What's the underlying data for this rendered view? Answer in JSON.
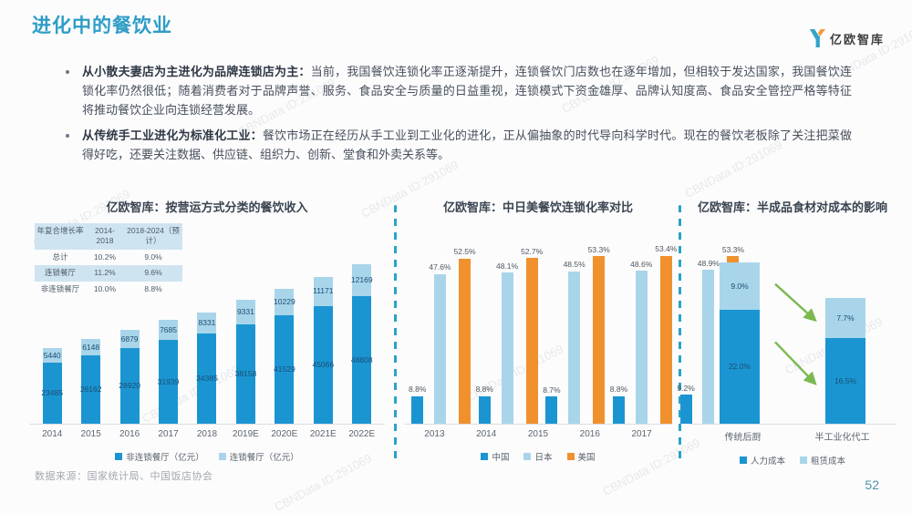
{
  "page": {
    "title": "进化中的餐饮业",
    "page_number": "52",
    "source": "数据来源：国家统计局、中国饭店协会",
    "watermark": "CBNData ID:291069",
    "accent_color": "#2e9dc6"
  },
  "logo": {
    "text": "亿欧智库"
  },
  "bullets": [
    {
      "lead": "从小散夫妻店为主进化为品牌连锁店为主：",
      "body": "当前，我国餐饮连锁化率正逐渐提升，连锁餐饮门店数也在逐年增加，但相较于发达国家，我国餐饮连锁化率仍然很低；随着消费者对于品牌声誉、服务、食品安全与质量的日益重视，连锁模式下资金雄厚、品牌认知度高、食品安全管控严格等特征将推动餐饮企业向连锁经营发展。"
    },
    {
      "lead": "从传统手工业进化为标准化工业：",
      "body": "餐饮市场正在经历从手工业到工业化的进化，正从偏抽象的时代导向科学时代。现在的餐饮老板除了关注把菜做得好吃，还要关注数据、供应链、组织力、创新、堂食和外卖关系等。"
    }
  ],
  "chart_data": [
    {
      "type": "bar",
      "stacked": true,
      "title": "亿欧智库：按营运方式分类的餐饮收入",
      "categories": [
        "2014",
        "2015",
        "2016",
        "2017",
        "2018",
        "2019E",
        "2020E",
        "2021E",
        "2022E"
      ],
      "series": [
        {
          "name": "非连锁餐厅（亿元）",
          "color": "#1b95d2",
          "values": [
            23485,
            26162,
            28920,
            31939,
            34385,
            38158,
            41529,
            45066,
            48808
          ]
        },
        {
          "name": "连锁餐厅（亿元）",
          "color": "#a9d5ea",
          "values": [
            5440,
            6148,
            6879,
            7685,
            8331,
            9331,
            10229,
            11171,
            12169
          ]
        }
      ],
      "legend_position": "bottom",
      "ylim": [
        0,
        61000
      ],
      "table": {
        "headers": [
          "年复合增长率",
          "2014-2018",
          "2018-2024（预计）"
        ],
        "rows": [
          [
            "总计",
            "10.2%",
            "9.0%"
          ],
          [
            "连锁餐厅",
            "11.2%",
            "9.6%"
          ],
          [
            "非连锁餐厅",
            "10.0%",
            "8.8%"
          ]
        ]
      }
    },
    {
      "type": "bar",
      "grouped": true,
      "title": "亿欧智库：中日美餐饮连锁化率对比",
      "categories": [
        "2013",
        "2014",
        "2015",
        "2016",
        "2017"
      ],
      "unit": "%",
      "series": [
        {
          "name": "中国",
          "color": "#1b95d2",
          "values": [
            8.8,
            8.8,
            8.7,
            8.8,
            9.2
          ],
          "labels": [
            "8.8%",
            "8.8%",
            "8.7%",
            "8.8%",
            "9.2%"
          ]
        },
        {
          "name": "日本",
          "color": "#a9d5ea",
          "values": [
            47.6,
            48.1,
            48.5,
            48.6,
            48.9
          ],
          "labels": [
            "47.6%",
            "48.1%",
            "48.5%",
            "48.6%",
            "48.9%"
          ]
        },
        {
          "name": "美国",
          "color": "#f0912d",
          "values": [
            52.5,
            52.7,
            53.3,
            53.4,
            53.3
          ],
          "labels": [
            "52.5%",
            "52.7%",
            "53.3%",
            "53.4%",
            "53.3%"
          ]
        }
      ],
      "legend_position": "bottom",
      "ylim": [
        0,
        60
      ]
    },
    {
      "type": "bar",
      "stacked": true,
      "title": "亿欧智库：半成品食材对成本的影响",
      "categories": [
        "传统后厨",
        "半工业化代工"
      ],
      "unit": "%",
      "series": [
        {
          "name": "人力成本",
          "color": "#1b95d2",
          "values": [
            22.0,
            16.5
          ],
          "labels": [
            "22.0%",
            "16.5%"
          ]
        },
        {
          "name": "租赁成本",
          "color": "#a9d5ea",
          "values": [
            9.0,
            7.7
          ],
          "labels": [
            "9.0%",
            "7.7%"
          ]
        }
      ],
      "legend_position": "bottom",
      "ylim": [
        0,
        35
      ],
      "arrow_color": "#7cb950"
    }
  ]
}
